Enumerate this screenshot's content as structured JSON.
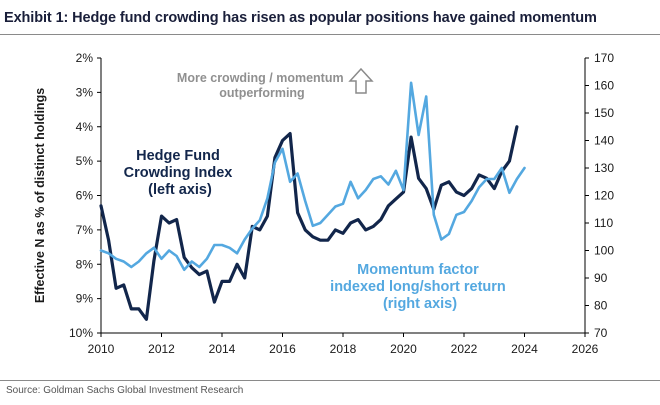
{
  "title": "Exhibit 1: Hedge fund crowding has risen as popular positions have gained momentum",
  "source": "Source: Goldman Sachs Global Investment Research",
  "colors": {
    "crowding": "#12264b",
    "momentum": "#54a8e0",
    "annotation_grey": "#909090",
    "axis": "#000000"
  },
  "annotations": {
    "top_line1": "More crowding / momentum",
    "top_line2": "outperforming",
    "arrow_icon": "up-arrow-outline-icon",
    "crowding_line1": "Hedge Fund",
    "crowding_line2": "Crowding Index",
    "crowding_line3": "(left axis)",
    "momentum_line1": "Momentum factor",
    "momentum_line2": "indexed long/short return",
    "momentum_line3": "(right axis)"
  },
  "chart_data": {
    "type": "line",
    "title": "",
    "xlabel": "",
    "ylabel": "Effective N as % of distinct holdings",
    "y2label": "",
    "xlim": [
      2010,
      2026
    ],
    "x_ticks": [
      "2010",
      "2012",
      "2014",
      "2016",
      "2018",
      "2020",
      "2022",
      "2024",
      "2026"
    ],
    "y_left": {
      "range": [
        10,
        2
      ],
      "inverted": true,
      "ticks": [
        "2%",
        "3%",
        "4%",
        "5%",
        "6%",
        "7%",
        "8%",
        "9%",
        "10%"
      ]
    },
    "y_right": {
      "range": [
        70,
        170
      ],
      "ticks": [
        "70",
        "80",
        "90",
        "100",
        "110",
        "120",
        "130",
        "140",
        "150",
        "160",
        "170"
      ]
    },
    "grid": false,
    "series": [
      {
        "name": "Hedge Fund Crowding Index",
        "axis": "left",
        "x": [
          2010.0,
          2010.25,
          2010.5,
          2010.75,
          2011.0,
          2011.25,
          2011.5,
          2011.75,
          2012.0,
          2012.25,
          2012.5,
          2012.75,
          2013.0,
          2013.25,
          2013.5,
          2013.75,
          2014.0,
          2014.25,
          2014.5,
          2014.75,
          2015.0,
          2015.25,
          2015.5,
          2015.75,
          2016.0,
          2016.25,
          2016.5,
          2016.75,
          2017.0,
          2017.25,
          2017.5,
          2017.75,
          2018.0,
          2018.25,
          2018.5,
          2018.75,
          2019.0,
          2019.25,
          2019.5,
          2019.75,
          2020.0,
          2020.25,
          2020.5,
          2020.75,
          2021.0,
          2021.25,
          2021.5,
          2021.75,
          2022.0,
          2022.25,
          2022.5,
          2022.75,
          2023.0,
          2023.25,
          2023.5,
          2023.75
        ],
        "values": [
          6.3,
          7.3,
          8.7,
          8.6,
          9.3,
          9.3,
          9.6,
          7.9,
          6.6,
          6.8,
          6.7,
          7.8,
          8.1,
          8.3,
          8.2,
          9.1,
          8.5,
          8.5,
          8.0,
          8.4,
          6.9,
          7.0,
          6.6,
          4.9,
          4.4,
          4.2,
          6.5,
          7.0,
          7.2,
          7.3,
          7.3,
          7.0,
          7.1,
          6.8,
          6.7,
          7.0,
          6.9,
          6.7,
          6.3,
          6.1,
          5.9,
          4.3,
          5.5,
          5.8,
          6.4,
          5.7,
          5.6,
          5.9,
          6.0,
          5.8,
          5.4,
          5.5,
          5.8,
          5.3,
          5.0,
          4.0
        ]
      },
      {
        "name": "Momentum factor indexed long/short return",
        "axis": "right",
        "x": [
          2010.0,
          2010.25,
          2010.5,
          2010.75,
          2011.0,
          2011.25,
          2011.5,
          2011.75,
          2012.0,
          2012.25,
          2012.5,
          2012.75,
          2013.0,
          2013.25,
          2013.5,
          2013.75,
          2014.0,
          2014.25,
          2014.5,
          2014.75,
          2015.0,
          2015.25,
          2015.5,
          2015.75,
          2016.0,
          2016.25,
          2016.5,
          2016.75,
          2017.0,
          2017.25,
          2017.5,
          2017.75,
          2018.0,
          2018.25,
          2018.5,
          2018.75,
          2019.0,
          2019.25,
          2019.5,
          2019.75,
          2020.0,
          2020.25,
          2020.5,
          2020.75,
          2021.0,
          2021.25,
          2021.5,
          2021.75,
          2022.0,
          2022.25,
          2022.5,
          2022.75,
          2023.0,
          2023.25,
          2023.5,
          2023.75,
          2024.0
        ],
        "values": [
          100,
          99,
          97,
          96,
          94,
          96,
          99,
          101,
          97,
          100,
          98,
          93,
          96,
          94,
          97,
          102,
          102,
          101,
          99,
          104,
          108,
          111,
          119,
          132,
          137,
          125,
          128,
          118,
          109,
          110,
          113,
          116,
          117,
          125,
          119,
          122,
          126,
          127,
          124,
          129,
          122,
          161,
          142,
          156,
          113,
          104,
          106,
          113,
          114,
          118,
          123,
          126,
          126,
          130,
          121,
          126,
          130
        ]
      }
    ]
  }
}
